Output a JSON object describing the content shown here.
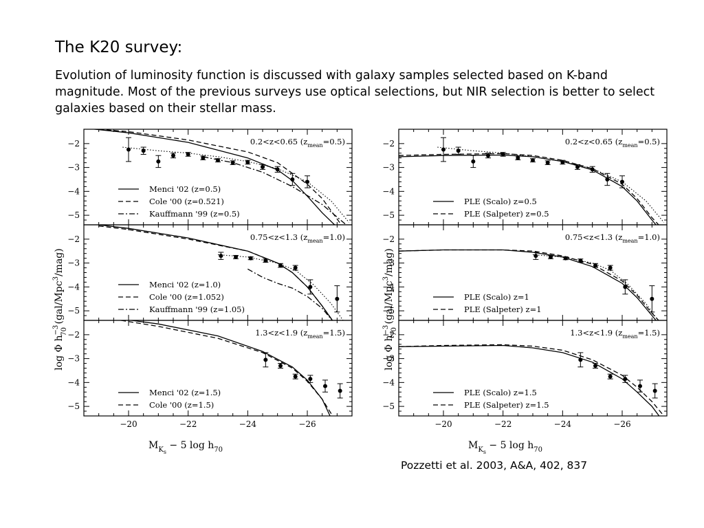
{
  "slide": {
    "title": "The K20 survey:",
    "body": "Evolution of luminosity function is discussed with galaxy samples selected based on K-band magnitude. Most of the previous surveys use optical selections, but NIR selection is better to select galaxies based on their stellar mass.",
    "citation": "Pozzetti et al. 2003, A&A, 402, 837"
  },
  "axes": {
    "xlabel": "M_{K_s} − 5 log h_{70}",
    "xlabel_main": "M",
    "xlabel_sub": "K",
    "xlabel_subsub": "s",
    "xlabel_rest": " − 5 log h",
    "xlabel_sub2": "70",
    "ylabel": "log Φ  h_{70}^{-3}  (gal/Mpc^3/mag)",
    "ylabel_pre": "log Φ   h",
    "ylabel_sup": "−3",
    "ylabel_sub": "70",
    "ylabel_mid": "  (gal/Mpc",
    "ylabel_sup2": "3",
    "ylabel_post": "/mag)",
    "xticks": [
      "−20",
      "−22",
      "−24",
      "−26"
    ],
    "yticks": [
      "−2",
      "−3",
      "−4",
      "−5"
    ]
  },
  "chart_data": [
    {
      "type": "line",
      "panel": "left-top",
      "label": "0.2<z<0.65",
      "zmean": "(z_mean=0.5)",
      "zmean_pre": "(z",
      "zmean_sub": "mean",
      "zmean_post": "=0.5)",
      "xlim": [
        -18.5,
        -27.5
      ],
      "ylim": [
        -5.4,
        -1.4
      ],
      "points": [
        {
          "x": -20.0,
          "y": -2.25,
          "err": 0.5
        },
        {
          "x": -20.5,
          "y": -2.3,
          "err": 0.15
        },
        {
          "x": -21.0,
          "y": -2.75,
          "err": 0.25
        },
        {
          "x": -21.5,
          "y": -2.5,
          "err": 0.1
        },
        {
          "x": -22.0,
          "y": -2.45,
          "err": 0.08
        },
        {
          "x": -22.5,
          "y": -2.6,
          "err": 0.08
        },
        {
          "x": -23.0,
          "y": -2.7,
          "err": 0.07
        },
        {
          "x": -23.5,
          "y": -2.8,
          "err": 0.08
        },
        {
          "x": -24.0,
          "y": -2.78,
          "err": 0.08
        },
        {
          "x": -24.5,
          "y": -2.98,
          "err": 0.1
        },
        {
          "x": -25.0,
          "y": -3.08,
          "err": 0.12
        },
        {
          "x": -25.5,
          "y": -3.5,
          "err": 0.25
        },
        {
          "x": -26.0,
          "y": -3.6,
          "err": 0.25
        }
      ],
      "legend": [
        {
          "style": "solid",
          "label": "Menci '02 (z=0.5)"
        },
        {
          "style": "dashed",
          "label": "Cole '00 (z=0.521)"
        },
        {
          "style": "dashdot",
          "label": "Kauffmann '99 (z=0.5)"
        }
      ],
      "curves": [
        {
          "style": "solid",
          "x": [
            -18.5,
            -20,
            -22,
            -24,
            -25,
            -25.5,
            -26,
            -26.5,
            -27
          ],
          "y": [
            -1.35,
            -1.55,
            -1.95,
            -2.6,
            -3.1,
            -3.55,
            -4.2,
            -4.9,
            -5.5
          ]
        },
        {
          "style": "dashed",
          "x": [
            -18.5,
            -20,
            -22,
            -24,
            -25,
            -26,
            -26.5,
            -27.2
          ],
          "y": [
            -1.35,
            -1.5,
            -1.85,
            -2.35,
            -2.8,
            -3.7,
            -4.3,
            -5.5
          ]
        },
        {
          "style": "dashdot",
          "x": [
            -22.5,
            -23.5,
            -24.5,
            -25.5,
            -26.5,
            -27.4
          ],
          "y": [
            -2.55,
            -2.8,
            -3.2,
            -3.8,
            -4.55,
            -5.5
          ]
        },
        {
          "style": "dotted",
          "x": [
            -19.8,
            -21,
            -22,
            -23,
            -24,
            -25,
            -26,
            -26.8,
            -27.4
          ],
          "y": [
            -2.15,
            -2.3,
            -2.4,
            -2.55,
            -2.75,
            -3.05,
            -3.6,
            -4.4,
            -5.3
          ]
        }
      ]
    },
    {
      "type": "line",
      "panel": "left-middle",
      "label": "0.75<z<1.3",
      "zmean": "(z_mean=1.0)",
      "zmean_pre": "(z",
      "zmean_sub": "mean",
      "zmean_post": "=1.0)",
      "xlim": [
        -18.5,
        -27.5
      ],
      "ylim": [
        -5.4,
        -1.4
      ],
      "points": [
        {
          "x": -23.1,
          "y": -2.7,
          "err": 0.15
        },
        {
          "x": -23.6,
          "y": -2.75,
          "err": 0.07
        },
        {
          "x": -24.1,
          "y": -2.8,
          "err": 0.06
        },
        {
          "x": -24.6,
          "y": -2.9,
          "err": 0.07
        },
        {
          "x": -25.1,
          "y": -3.1,
          "err": 0.08
        },
        {
          "x": -25.6,
          "y": -3.2,
          "err": 0.1
        },
        {
          "x": -26.1,
          "y": -4.0,
          "err": 0.3
        },
        {
          "x": -27.0,
          "y": -4.5,
          "err": 0.55
        }
      ],
      "legend": [
        {
          "style": "solid",
          "label": "Menci '02 (z=1.0)"
        },
        {
          "style": "dashed",
          "label": "Cole '00 (z=1.052)"
        },
        {
          "style": "dashdot",
          "label": "Kauffmann '99 (z=1.05)"
        }
      ],
      "curves": [
        {
          "style": "solid",
          "x": [
            -19,
            -20,
            -22,
            -24,
            -25,
            -25.5,
            -26,
            -26.5,
            -26.9
          ],
          "y": [
            -1.4,
            -1.55,
            -1.95,
            -2.5,
            -3.0,
            -3.4,
            -4.0,
            -4.8,
            -5.5
          ]
        },
        {
          "style": "dashed",
          "x": [
            -19,
            -20,
            -22,
            -24,
            -25,
            -25.5,
            -26,
            -26.5,
            -26.9
          ],
          "y": [
            -1.45,
            -1.6,
            -2.0,
            -2.5,
            -3.0,
            -3.4,
            -4.0,
            -4.8,
            -5.5
          ]
        },
        {
          "style": "dashdot",
          "x": [
            -24,
            -24.5,
            -25,
            -25.5,
            -26,
            -26.5,
            -26.9
          ],
          "y": [
            -3.25,
            -3.6,
            -3.85,
            -4.05,
            -4.4,
            -4.9,
            -5.5
          ]
        },
        {
          "style": "dotted",
          "x": [
            -23,
            -24,
            -25,
            -25.6,
            -26.2,
            -26.8,
            -27.2
          ],
          "y": [
            -2.65,
            -2.75,
            -3.0,
            -3.3,
            -3.9,
            -4.7,
            -5.4
          ]
        }
      ]
    },
    {
      "type": "line",
      "panel": "left-bottom",
      "label": "1.3<z<1.9",
      "zmean": "(z_mean=1.5)",
      "zmean_pre": "(z",
      "zmean_sub": "mean",
      "zmean_post": "=1.5)",
      "xlim": [
        -18.5,
        -27.5
      ],
      "ylim": [
        -5.4,
        -1.4
      ],
      "points": [
        {
          "x": -24.6,
          "y": -3.05,
          "err": 0.3
        },
        {
          "x": -25.1,
          "y": -3.3,
          "err": 0.1
        },
        {
          "x": -25.6,
          "y": -3.75,
          "err": 0.1
        },
        {
          "x": -26.1,
          "y": -3.85,
          "err": 0.15
        },
        {
          "x": -26.6,
          "y": -4.15,
          "err": 0.25
        },
        {
          "x": -27.1,
          "y": -4.35,
          "err": 0.3
        }
      ],
      "legend": [
        {
          "style": "solid",
          "label": "Menci '02 (z=1.5)"
        },
        {
          "style": "dashed",
          "label": "Cole '00 (z=1.5)"
        }
      ],
      "curves": [
        {
          "style": "solid",
          "x": [
            -19.5,
            -21,
            -23,
            -24.5,
            -25.5,
            -26,
            -26.5,
            -26.8
          ],
          "y": [
            -1.3,
            -1.55,
            -2.05,
            -2.7,
            -3.35,
            -3.9,
            -4.7,
            -5.5
          ]
        },
        {
          "style": "dashed",
          "x": [
            -19.5,
            -21,
            -23,
            -24.5,
            -25.5,
            -26,
            -26.5,
            -26.9
          ],
          "y": [
            -1.35,
            -1.65,
            -2.15,
            -2.75,
            -3.4,
            -3.95,
            -4.7,
            -5.5
          ]
        }
      ]
    },
    {
      "type": "line",
      "panel": "right-top",
      "label": "0.2<z<0.65",
      "zmean": "(z_mean=0.5)",
      "zmean_pre": "(z",
      "zmean_sub": "mean",
      "zmean_post": "=0.5)",
      "xlim": [
        -18.5,
        -27.5
      ],
      "ylim": [
        -5.4,
        -1.4
      ],
      "points": [
        {
          "x": -20.0,
          "y": -2.25,
          "err": 0.5
        },
        {
          "x": -20.5,
          "y": -2.3,
          "err": 0.15
        },
        {
          "x": -21.0,
          "y": -2.75,
          "err": 0.25
        },
        {
          "x": -21.5,
          "y": -2.5,
          "err": 0.1
        },
        {
          "x": -22.0,
          "y": -2.45,
          "err": 0.08
        },
        {
          "x": -22.5,
          "y": -2.6,
          "err": 0.08
        },
        {
          "x": -23.0,
          "y": -2.7,
          "err": 0.07
        },
        {
          "x": -23.5,
          "y": -2.8,
          "err": 0.08
        },
        {
          "x": -24.0,
          "y": -2.78,
          "err": 0.08
        },
        {
          "x": -24.5,
          "y": -2.98,
          "err": 0.1
        },
        {
          "x": -25.0,
          "y": -3.08,
          "err": 0.12
        },
        {
          "x": -25.5,
          "y": -3.5,
          "err": 0.25
        },
        {
          "x": -26.0,
          "y": -3.6,
          "err": 0.25
        }
      ],
      "legend": [
        {
          "style": "solid",
          "label": "PLE (Scalo) z=0.5"
        },
        {
          "style": "dashed",
          "label": "PLE (Salpeter) z=0.5"
        }
      ],
      "curves": [
        {
          "style": "solid",
          "x": [
            -18.5,
            -20,
            -22,
            -23,
            -24,
            -25,
            -26,
            -26.5,
            -27,
            -27.2
          ],
          "y": [
            -2.55,
            -2.5,
            -2.48,
            -2.55,
            -2.75,
            -3.1,
            -3.8,
            -4.4,
            -5.2,
            -5.5
          ]
        },
        {
          "style": "dashed",
          "x": [
            -18.5,
            -20,
            -22,
            -23,
            -24,
            -25,
            -26,
            -26.5,
            -27,
            -27.3
          ],
          "y": [
            -2.5,
            -2.45,
            -2.42,
            -2.5,
            -2.7,
            -3.05,
            -3.7,
            -4.3,
            -5.1,
            -5.5
          ]
        },
        {
          "style": "dotted",
          "x": [
            -19.8,
            -21,
            -22,
            -23,
            -24,
            -25,
            -26,
            -26.8,
            -27.4
          ],
          "y": [
            -2.15,
            -2.3,
            -2.4,
            -2.55,
            -2.75,
            -3.05,
            -3.6,
            -4.4,
            -5.3
          ]
        }
      ]
    },
    {
      "type": "line",
      "panel": "right-middle",
      "label": "0.75<z<1.3",
      "zmean": "(z_mean=1.0)",
      "zmean_pre": "(z",
      "zmean_sub": "mean",
      "zmean_post": "=1.0)",
      "xlim": [
        -18.5,
        -27.5
      ],
      "ylim": [
        -5.4,
        -1.4
      ],
      "points": [
        {
          "x": -23.1,
          "y": -2.7,
          "err": 0.15
        },
        {
          "x": -23.6,
          "y": -2.75,
          "err": 0.07
        },
        {
          "x": -24.1,
          "y": -2.8,
          "err": 0.06
        },
        {
          "x": -24.6,
          "y": -2.9,
          "err": 0.07
        },
        {
          "x": -25.1,
          "y": -3.1,
          "err": 0.08
        },
        {
          "x": -25.6,
          "y": -3.2,
          "err": 0.1
        },
        {
          "x": -26.1,
          "y": -4.0,
          "err": 0.3
        },
        {
          "x": -27.0,
          "y": -4.5,
          "err": 0.55
        }
      ],
      "legend": [
        {
          "style": "solid",
          "label": "PLE (Scalo) z=1"
        },
        {
          "style": "dashed",
          "label": "PLE (Salpeter) z=1"
        }
      ],
      "curves": [
        {
          "style": "solid",
          "x": [
            -18.5,
            -20,
            -22,
            -23,
            -24,
            -25,
            -26,
            -26.5,
            -27,
            -27.2
          ],
          "y": [
            -2.5,
            -2.45,
            -2.45,
            -2.55,
            -2.75,
            -3.15,
            -3.85,
            -4.45,
            -5.2,
            -5.5
          ]
        },
        {
          "style": "dashed",
          "x": [
            -18.5,
            -20,
            -22,
            -23,
            -24,
            -25,
            -26,
            -26.5,
            -27,
            -27.3
          ],
          "y": [
            -2.5,
            -2.45,
            -2.45,
            -2.5,
            -2.7,
            -3.05,
            -3.75,
            -4.35,
            -5.1,
            -5.5
          ]
        },
        {
          "style": "dotted",
          "x": [
            -23,
            -24,
            -25,
            -25.6,
            -26.2,
            -26.8,
            -27.2
          ],
          "y": [
            -2.65,
            -2.75,
            -3.0,
            -3.3,
            -3.9,
            -4.7,
            -5.4
          ]
        }
      ]
    },
    {
      "type": "line",
      "panel": "right-bottom",
      "label": "1.3<z<1.9",
      "zmean": "(z_mean=1.5)",
      "zmean_pre": "(z",
      "zmean_sub": "mean",
      "zmean_post": "=1.5)",
      "xlim": [
        -18.5,
        -27.5
      ],
      "ylim": [
        -5.4,
        -1.4
      ],
      "points": [
        {
          "x": -24.6,
          "y": -3.05,
          "err": 0.3
        },
        {
          "x": -25.1,
          "y": -3.3,
          "err": 0.1
        },
        {
          "x": -25.6,
          "y": -3.75,
          "err": 0.1
        },
        {
          "x": -26.1,
          "y": -3.85,
          "err": 0.15
        },
        {
          "x": -26.6,
          "y": -4.15,
          "err": 0.25
        },
        {
          "x": -27.1,
          "y": -4.35,
          "err": 0.3
        }
      ],
      "legend": [
        {
          "style": "solid",
          "label": "PLE (Scalo) z=1.5"
        },
        {
          "style": "dashed",
          "label": "PLE (Salpeter) z=1.5"
        }
      ],
      "curves": [
        {
          "style": "solid",
          "x": [
            -18.5,
            -20,
            -22,
            -23,
            -24,
            -25,
            -26,
            -26.5,
            -27,
            -27.3
          ],
          "y": [
            -2.5,
            -2.48,
            -2.45,
            -2.55,
            -2.75,
            -3.15,
            -3.85,
            -4.4,
            -5.0,
            -5.5
          ]
        },
        {
          "style": "dashed",
          "x": [
            -18.5,
            -20,
            -22,
            -23,
            -24,
            -25,
            -26,
            -26.5,
            -27,
            -27.4
          ],
          "y": [
            -2.5,
            -2.45,
            -2.42,
            -2.48,
            -2.65,
            -3.05,
            -3.7,
            -4.2,
            -4.8,
            -5.4
          ]
        }
      ]
    }
  ]
}
